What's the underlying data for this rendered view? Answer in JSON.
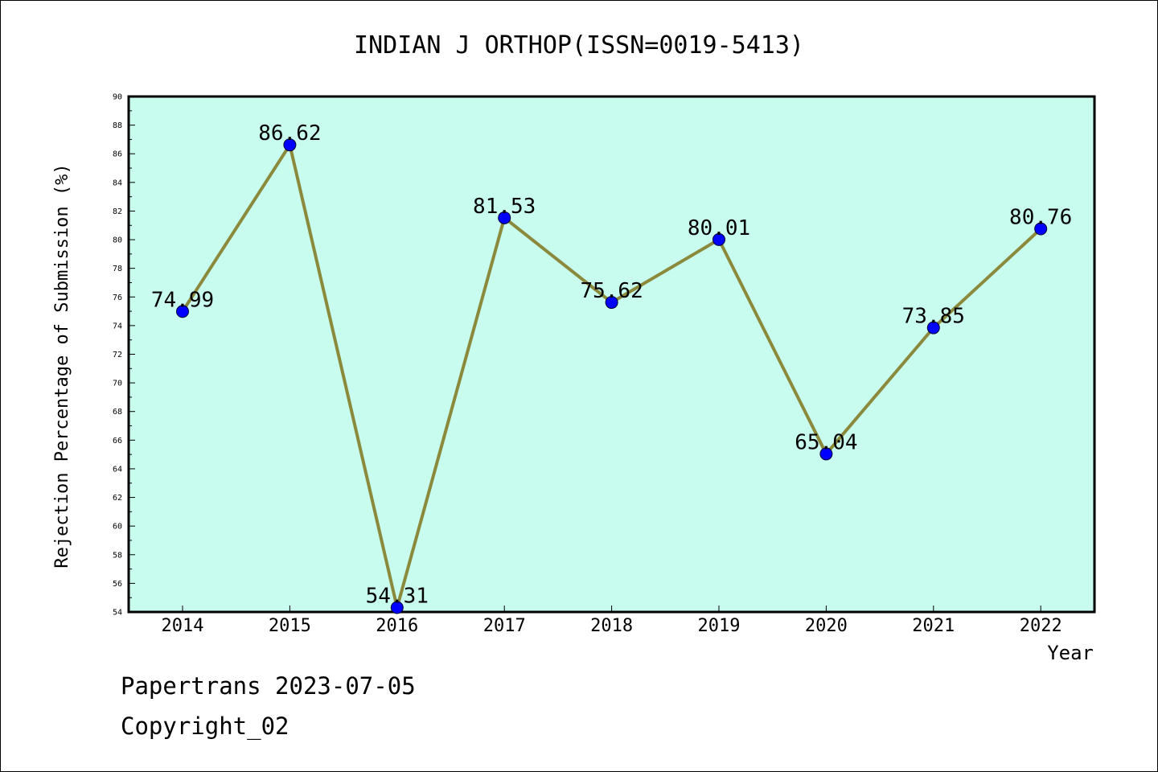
{
  "chart_data": {
    "type": "line",
    "title": "INDIAN J ORTHOP(ISSN=0019-5413)",
    "xlabel": "Year",
    "ylabel": "Rejection Percentage of Submission (%)",
    "categories": [
      "2014",
      "2015",
      "2016",
      "2017",
      "2018",
      "2019",
      "2020",
      "2021",
      "2022"
    ],
    "values": [
      74.99,
      86.62,
      54.31,
      81.53,
      75.62,
      80.01,
      65.04,
      73.85,
      80.76
    ],
    "data_labels": [
      "74.99",
      "86.62",
      "54.31",
      "81.53",
      "75.62",
      "80.01",
      "65.04",
      "73.85",
      "80.76"
    ],
    "ylim": [
      54,
      90
    ],
    "yticks": [
      "54",
      "56",
      "58",
      "60",
      "62",
      "64",
      "66",
      "68",
      "70",
      "72",
      "74",
      "76",
      "78",
      "80",
      "82",
      "84",
      "86",
      "88",
      "90"
    ],
    "grid": false,
    "colors": {
      "plot_background": "#c8fcee",
      "line": "#8b8a3c",
      "marker": "#0000ff"
    }
  },
  "footer": {
    "line1": "Papertrans 2023-07-05",
    "line2": "Copyright_02"
  }
}
